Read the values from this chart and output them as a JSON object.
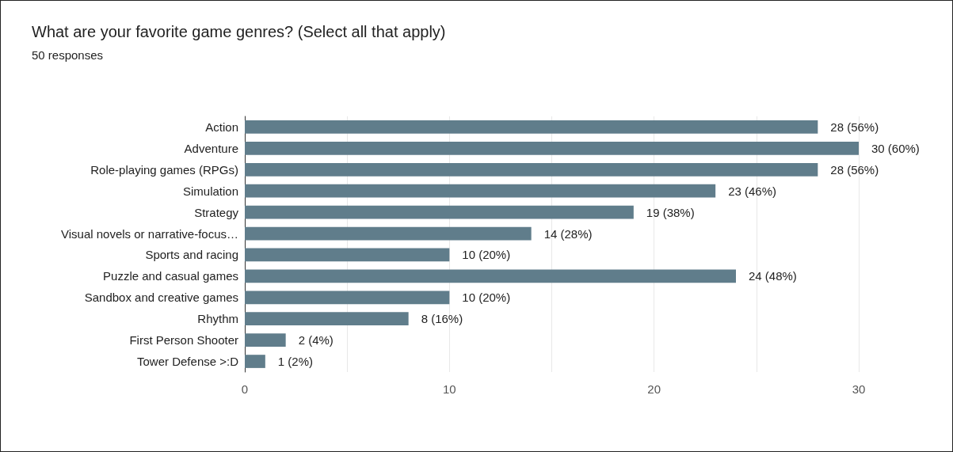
{
  "chart_data": {
    "type": "bar",
    "orientation": "horizontal",
    "title": "What are your favorite game genres? (Select all that apply)",
    "subtitle": "50 responses",
    "categories": [
      "Action",
      "Adventure",
      "Role-playing games (RPGs)",
      "Simulation",
      "Strategy",
      "Visual novels or narrative-focus…",
      "Sports and racing",
      "Puzzle and casual games",
      "Sandbox and creative games",
      "Rhythm",
      "First Person Shooter",
      "Tower Defense >:D"
    ],
    "values": [
      28,
      30,
      28,
      23,
      19,
      14,
      10,
      24,
      10,
      8,
      2,
      1
    ],
    "value_labels": [
      "28 (56%)",
      "30 (60%)",
      "28 (56%)",
      "23 (46%)",
      "19 (38%)",
      "14 (28%)",
      "10 (20%)",
      "24 (48%)",
      "10 (20%)",
      "8 (16%)",
      "2 (4%)",
      "1 (2%)"
    ],
    "color": "#607d8b",
    "xlim": [
      0,
      30
    ],
    "xticks": [
      0,
      {
        "value": 5,
        "label": null
      },
      10,
      {
        "value": 15,
        "label": null
      },
      20,
      {
        "value": 25,
        "label": null
      },
      30
    ],
    "grid": "x"
  }
}
